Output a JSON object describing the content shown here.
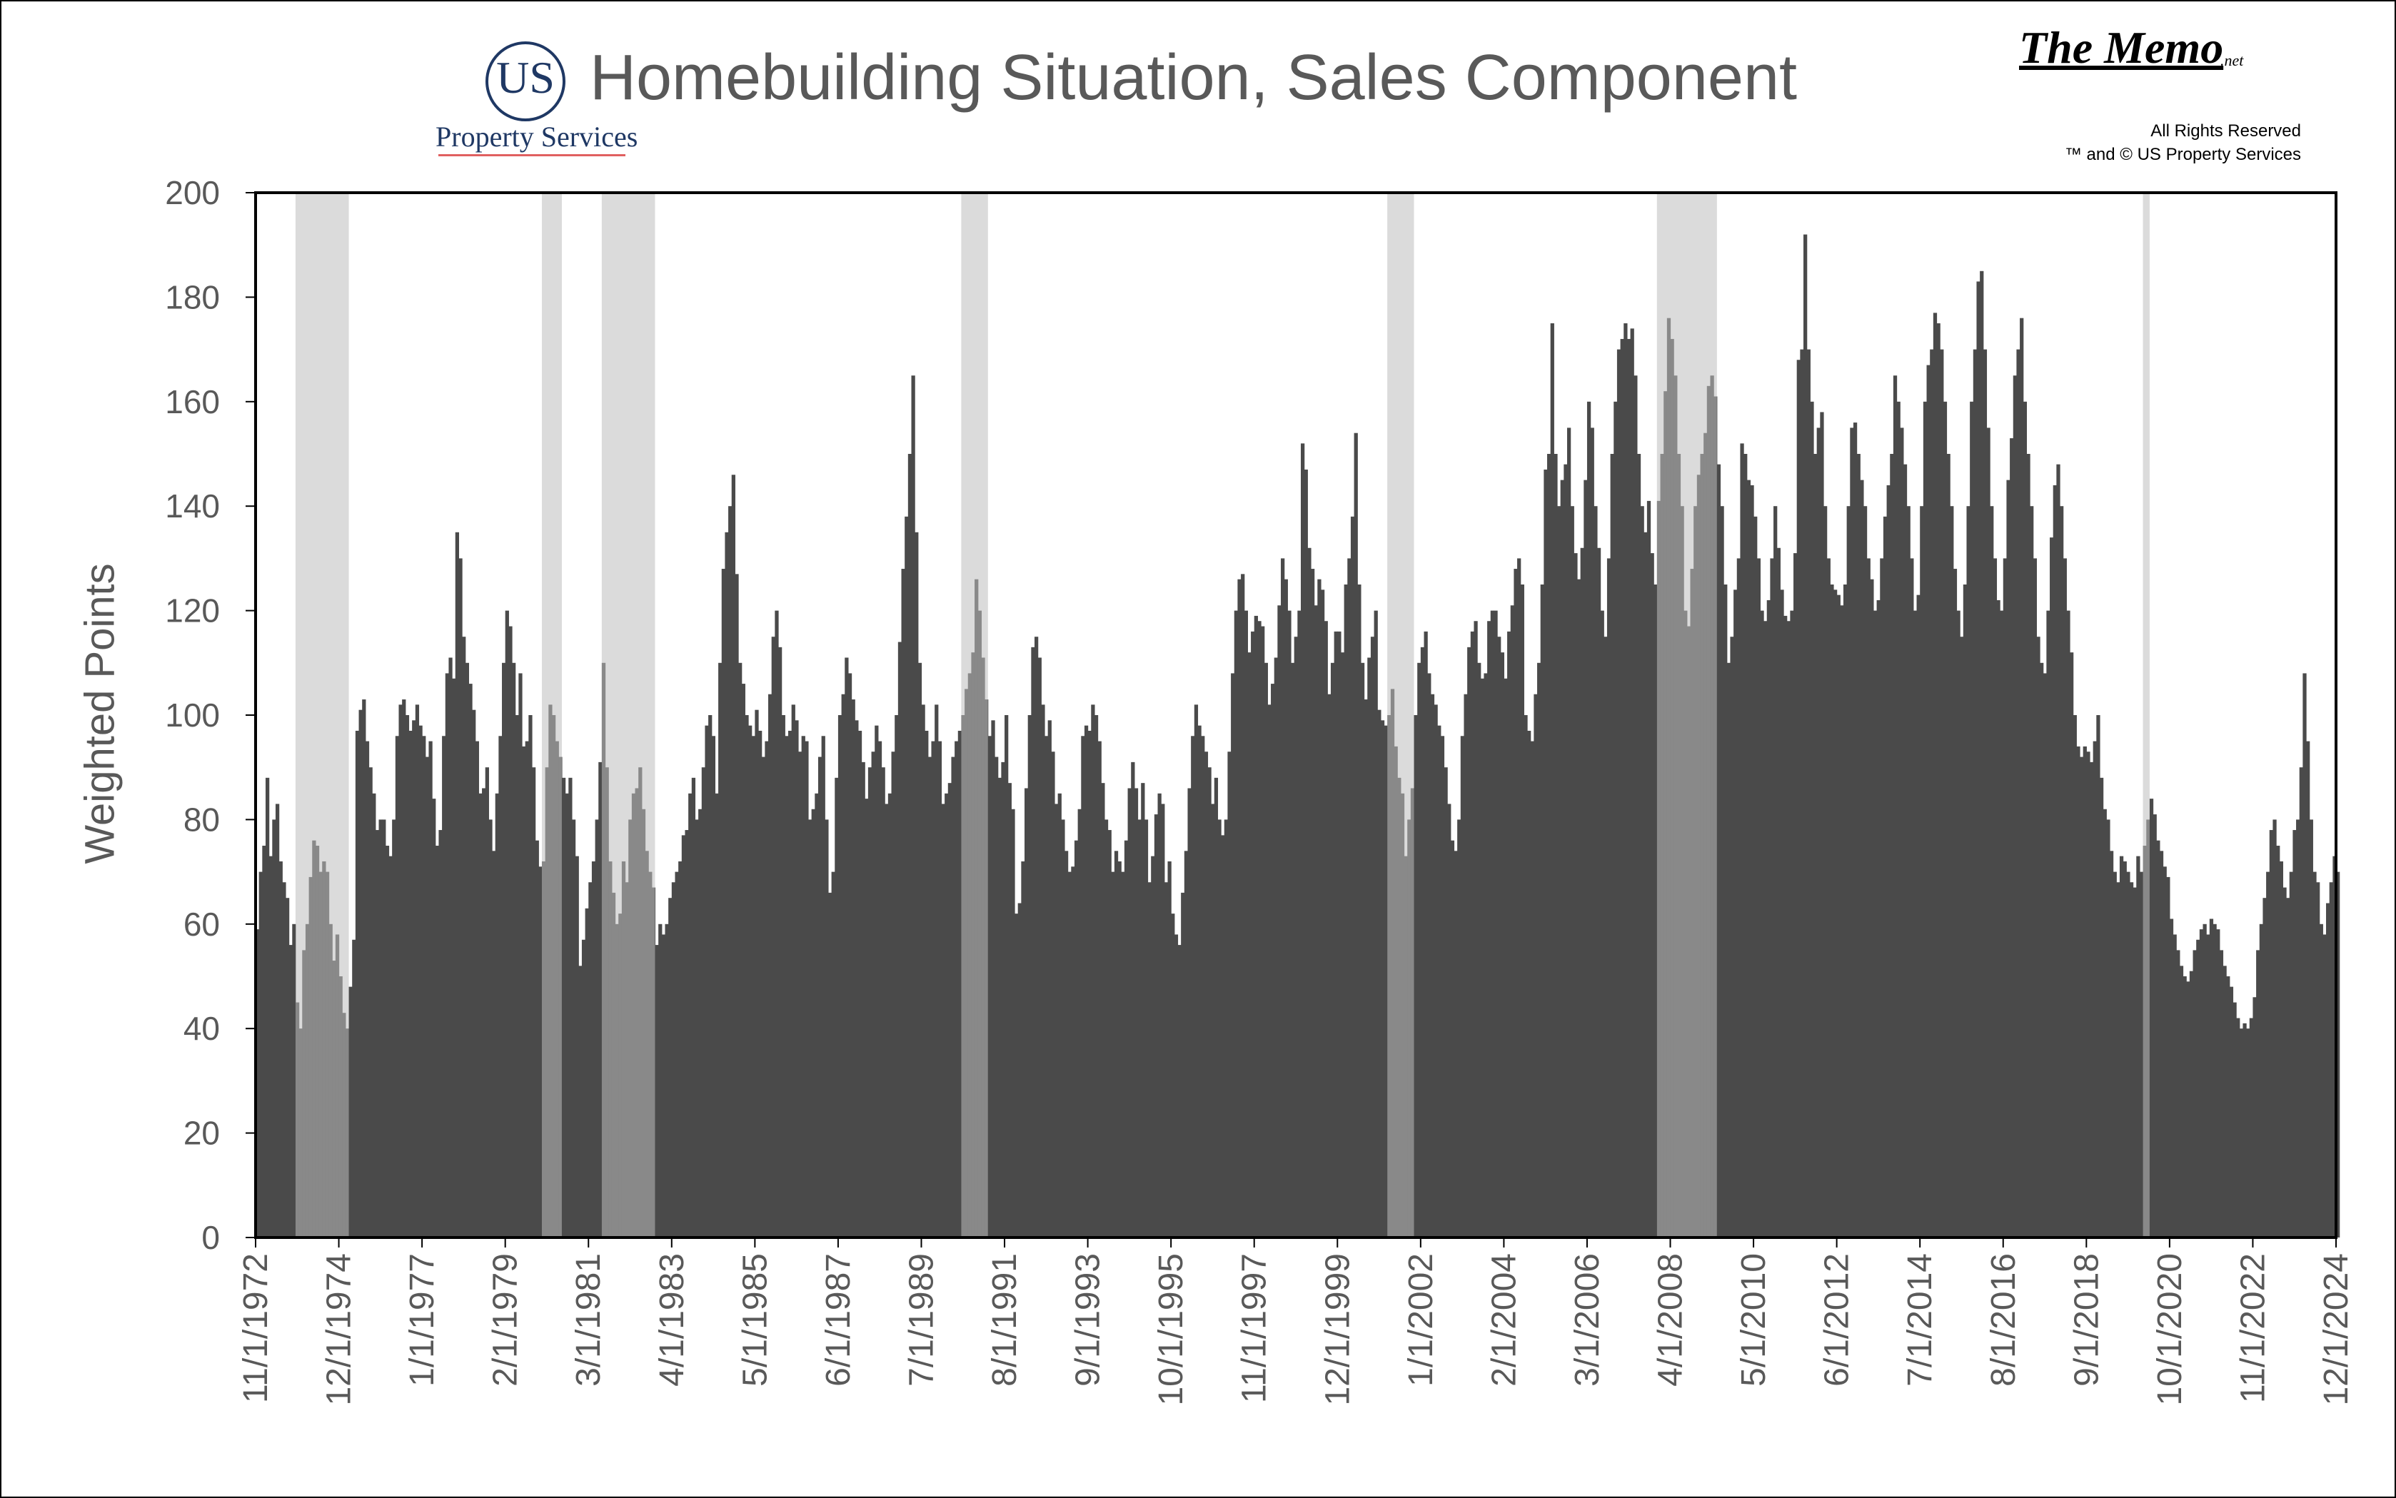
{
  "header": {
    "title": "Homebuilding Situation, Sales Component",
    "logo_us": "US",
    "logo_sub": "Property Services",
    "memo": "The Memo",
    "memo_suffix": ".net",
    "rights_line1": "All Rights Reserved",
    "rights_line2": "™ and © US Property Services"
  },
  "chart_data": {
    "type": "bar",
    "title": "Homebuilding Situation, Sales Component",
    "xlabel": "",
    "ylabel": "Weighted Points",
    "ylim": [
      0,
      200
    ],
    "yticks": [
      0,
      20,
      40,
      60,
      80,
      100,
      120,
      140,
      160,
      180,
      200
    ],
    "x_range": [
      "11/1/1972",
      "12/1/2024"
    ],
    "xtick_labels": [
      "11/1/1972",
      "12/1/1974",
      "1/1/1977",
      "2/1/1979",
      "3/1/1981",
      "4/1/1983",
      "5/1/1985",
      "6/1/1987",
      "7/1/1989",
      "8/1/1991",
      "9/1/1993",
      "10/1/1995",
      "11/1/1997",
      "12/1/1999",
      "1/1/2002",
      "2/1/2004",
      "3/1/2006",
      "4/1/2008",
      "5/1/2010",
      "6/1/2012",
      "7/1/2014",
      "8/1/2016",
      "9/1/2018",
      "10/1/2020",
      "11/1/2022",
      "12/1/2024"
    ],
    "bar_color": "#4a4a4a",
    "recession_color": "#c8c8c8",
    "recessions": [
      {
        "start": "11/1/1973",
        "end": "3/1/1975"
      },
      {
        "start": "1/1/1980",
        "end": "7/1/1980"
      },
      {
        "start": "7/1/1981",
        "end": "11/1/1982"
      },
      {
        "start": "7/1/1990",
        "end": "3/1/1991"
      },
      {
        "start": "3/1/2001",
        "end": "11/1/2001"
      },
      {
        "start": "12/1/2007",
        "end": "6/1/2009"
      },
      {
        "start": "2/1/2020",
        "end": "4/1/2020"
      }
    ],
    "series_start": "11/1/1972",
    "interval": "monthly",
    "values": [
      59,
      70,
      75,
      88,
      73,
      80,
      83,
      72,
      68,
      65,
      56,
      60,
      45,
      40,
      55,
      60,
      69,
      76,
      75,
      70,
      72,
      70,
      60,
      53,
      58,
      50,
      43,
      40,
      48,
      57,
      97,
      101,
      103,
      95,
      90,
      85,
      78,
      80,
      80,
      75,
      73,
      80,
      96,
      102,
      103,
      100,
      97,
      99,
      102,
      98,
      96,
      92,
      95,
      84,
      75,
      78,
      96,
      108,
      111,
      107,
      135,
      130,
      115,
      110,
      106,
      101,
      95,
      85,
      86,
      90,
      80,
      74,
      85,
      96,
      110,
      120,
      117,
      110,
      100,
      108,
      94,
      95,
      100,
      90,
      76,
      71,
      72,
      90,
      102,
      100,
      95,
      92,
      88,
      85,
      88,
      80,
      73,
      52,
      57,
      63,
      68,
      72,
      80,
      91,
      110,
      90,
      72,
      66,
      60,
      62,
      72,
      68,
      80,
      85,
      86,
      90,
      82,
      74,
      70,
      67,
      56,
      60,
      58,
      60,
      65,
      68,
      70,
      72,
      77,
      78,
      85,
      88,
      80,
      82,
      90,
      98,
      100,
      96,
      85,
      110,
      128,
      135,
      140,
      146,
      127,
      110,
      106,
      100,
      98,
      96,
      101,
      97,
      92,
      95,
      104,
      115,
      120,
      113,
      100,
      96,
      97,
      102,
      99,
      93,
      96,
      95,
      80,
      82,
      85,
      92,
      96,
      80,
      66,
      70,
      88,
      100,
      104,
      111,
      108,
      103,
      99,
      97,
      91,
      84,
      90,
      93,
      98,
      95,
      90,
      83,
      85,
      93,
      100,
      114,
      128,
      138,
      150,
      165,
      135,
      110,
      102,
      97,
      92,
      95,
      102,
      95,
      83,
      85,
      87,
      92,
      95,
      97,
      100,
      105,
      108,
      112,
      126,
      120,
      111,
      103,
      96,
      99,
      92,
      88,
      91,
      100,
      87,
      82,
      62,
      64,
      72,
      86,
      100,
      113,
      115,
      111,
      102,
      96,
      99,
      93,
      83,
      85,
      80,
      74,
      70,
      71,
      76,
      82,
      96,
      98,
      97,
      102,
      100,
      95,
      87,
      80,
      78,
      70,
      74,
      72,
      70,
      76,
      86,
      91,
      86,
      80,
      87,
      80,
      68,
      73,
      81,
      85,
      83,
      68,
      72,
      62,
      58,
      56,
      66,
      74,
      86,
      96,
      102,
      98,
      96,
      93,
      90,
      83,
      88,
      80,
      77,
      80,
      93,
      108,
      120,
      126,
      127,
      120,
      112,
      116,
      119,
      118,
      117,
      110,
      102,
      106,
      111,
      121,
      130,
      126,
      120,
      110,
      115,
      120,
      152,
      147,
      132,
      128,
      121,
      126,
      124,
      118,
      104,
      110,
      116,
      116,
      112,
      125,
      130,
      138,
      154,
      125,
      110,
      103,
      111,
      115,
      120,
      101,
      99,
      98,
      100,
      105,
      94,
      88,
      85,
      73,
      80,
      86,
      100,
      110,
      113,
      116,
      108,
      104,
      102,
      98,
      96,
      90,
      83,
      76,
      74,
      80,
      96,
      104,
      113,
      116,
      118,
      110,
      107,
      108,
      118,
      120,
      120,
      115,
      112,
      107,
      116,
      121,
      128,
      130,
      125,
      100,
      97,
      95,
      104,
      110,
      125,
      147,
      150,
      175,
      150,
      140,
      145,
      148,
      155,
      140,
      131,
      126,
      132,
      145,
      160,
      155,
      140,
      132,
      120,
      115,
      130,
      150,
      160,
      170,
      172,
      175,
      172,
      174,
      165,
      150,
      140,
      135,
      141,
      131,
      125,
      141,
      150,
      162,
      176,
      172,
      165,
      150,
      140,
      120,
      117,
      128,
      140,
      146,
      150,
      154,
      163,
      165,
      161,
      148,
      140,
      125,
      110,
      115,
      124,
      130,
      152,
      150,
      145,
      144,
      138,
      130,
      120,
      118,
      122,
      130,
      140,
      132,
      124,
      119,
      118,
      120,
      131,
      168,
      170,
      192,
      170,
      160,
      150,
      155,
      158,
      140,
      130,
      125,
      124,
      123,
      121,
      125,
      140,
      155,
      156,
      150,
      145,
      140,
      130,
      126,
      120,
      122,
      130,
      138,
      144,
      150,
      165,
      160,
      155,
      148,
      140,
      130,
      120,
      123,
      140,
      160,
      167,
      170,
      177,
      175,
      170,
      160,
      150,
      140,
      128,
      120,
      115,
      125,
      140,
      160,
      170,
      183,
      185,
      170,
      155,
      140,
      130,
      122,
      120,
      130,
      145,
      153,
      165,
      170,
      176,
      160,
      150,
      140,
      130,
      115,
      110,
      108,
      120,
      134,
      144,
      148,
      140,
      130,
      120,
      112,
      100,
      94,
      92,
      94,
      93,
      91,
      95,
      100,
      88,
      82,
      80,
      74,
      70,
      68,
      73,
      72,
      70,
      68,
      67,
      73,
      70,
      75,
      80,
      84,
      81,
      76,
      74,
      71,
      69,
      61,
      58,
      55,
      52,
      50,
      49,
      51,
      55,
      57,
      59,
      60,
      58,
      61,
      60,
      59,
      55,
      52,
      50,
      48,
      45,
      42,
      40,
      41,
      40,
      42,
      46,
      55,
      60,
      65,
      70,
      78,
      80,
      75,
      72,
      67,
      65,
      70,
      78,
      80,
      90,
      108,
      95,
      80,
      70,
      68,
      60,
      58,
      64,
      68,
      73,
      70,
      65,
      62,
      60,
      63,
      68,
      70,
      72,
      70,
      85,
      92,
      96,
      95,
      90,
      88,
      86,
      85,
      83,
      80,
      88,
      96,
      107,
      122,
      131,
      137,
      135,
      130,
      125,
      118,
      115,
      110,
      108,
      115,
      125,
      138,
      154,
      152,
      146,
      137,
      126,
      120,
      112,
      108,
      100,
      97,
      95,
      96,
      98,
      102,
      110,
      118,
      125,
      120,
      114,
      110,
      107,
      103,
      98,
      96,
      100,
      103,
      110,
      118,
      127,
      130,
      133,
      130,
      128,
      123,
      118,
      114,
      110,
      106,
      100,
      95,
      92,
      88,
      90,
      92,
      94,
      101,
      108,
      118,
      130,
      130,
      125,
      120,
      115,
      111,
      108,
      104,
      100,
      96,
      90,
      88,
      86,
      88,
      92,
      96,
      101,
      110,
      120,
      126,
      124,
      120,
      117,
      115,
      111,
      105,
      103,
      100,
      96,
      90,
      86,
      82,
      78,
      75,
      72,
      70,
      65,
      63,
      70,
      80,
      90,
      96,
      100,
      104,
      106,
      108,
      112,
      114,
      110,
      106,
      102,
      98,
      95,
      92,
      88,
      86,
      85,
      88,
      90,
      100,
      110,
      120,
      137,
      165,
      162,
      155,
      148,
      140,
      135,
      130,
      127,
      125,
      120,
      110,
      96,
      88,
      80,
      78,
      74,
      70,
      72,
      75,
      78,
      82,
      84,
      86,
      80,
      75,
      70,
      65,
      60,
      56,
      54,
      52,
      51,
      53,
      56,
      60,
      65,
      70,
      74,
      78,
      82,
      82,
      80,
      78,
      76,
      75,
      72,
      68,
      64,
      60,
      58,
      56,
      55,
      58,
      62,
      66,
      70,
      74,
      78,
      80,
      80,
      78,
      76,
      74,
      72,
      70,
      68,
      66,
      64,
      60,
      56,
      54,
      52,
      55,
      58,
      60
    ]
  },
  "y_axis_title": "Weighted Points"
}
